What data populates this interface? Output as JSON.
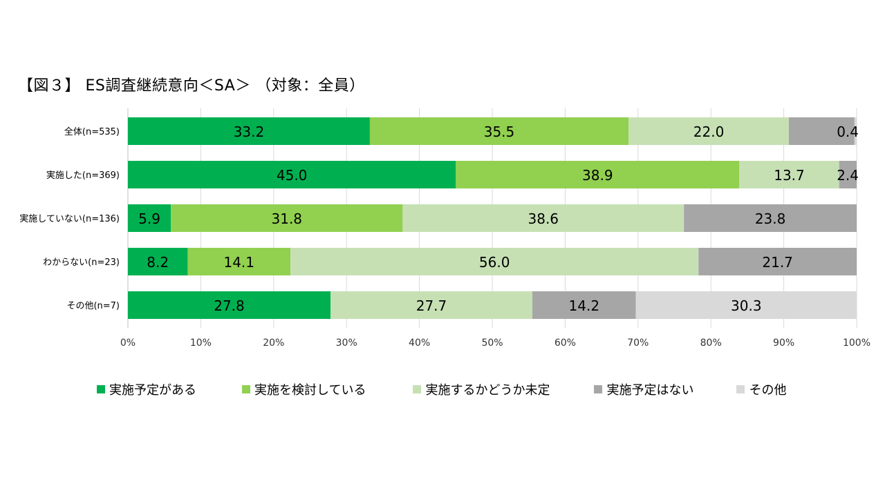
{
  "chart_data": {
    "type": "bar",
    "orientation": "horizontal",
    "stacked": true,
    "title": "【図３】 ES調査継続意向＜SA＞ （対象：全員）",
    "categories": [
      "全体(n=535)",
      "実施した(n=369)",
      "実施していない(n=136)",
      "わからない(n=23)",
      "その他(n=7)"
    ],
    "series": [
      {
        "name": "実施予定がある",
        "color": "#00B050",
        "values": [
          33.2,
          45.0,
          5.9,
          8.2,
          27.8
        ],
        "labels": [
          "33.2",
          "45.0",
          "5.9",
          "8.2",
          "27.8"
        ]
      },
      {
        "name": "実施を検討している",
        "color": "#92D050",
        "values": [
          35.5,
          38.9,
          31.8,
          14.1,
          0
        ],
        "labels": [
          "35.5",
          "38.9",
          "31.8",
          "14.1",
          ""
        ]
      },
      {
        "name": "実施するかどうか未定",
        "color": "#C6E0B4",
        "values": [
          22.0,
          13.7,
          38.6,
          56.0,
          27.7
        ],
        "labels": [
          "22.0",
          "13.7",
          "38.6",
          "56.0",
          "27.7"
        ]
      },
      {
        "name": "実施予定はない",
        "color": "#A6A6A6",
        "values": [
          9.0,
          2.4,
          23.8,
          21.7,
          14.2
        ],
        "labels": [
          "",
          "2.4",
          "23.8",
          "21.7",
          "14.2"
        ]
      },
      {
        "name": "その他",
        "color": "#D9D9D9",
        "values": [
          0.4,
          0,
          0,
          0,
          30.3
        ],
        "labels": [
          "0.4",
          "",
          "",
          "",
          "30.3"
        ]
      }
    ],
    "xlim": [
      0,
      100
    ],
    "xticks": [
      "0%",
      "10%",
      "20%",
      "30%",
      "40%",
      "50%",
      "60%",
      "70%",
      "80%",
      "90%",
      "100%"
    ],
    "grid": true,
    "legend_position": "bottom"
  }
}
